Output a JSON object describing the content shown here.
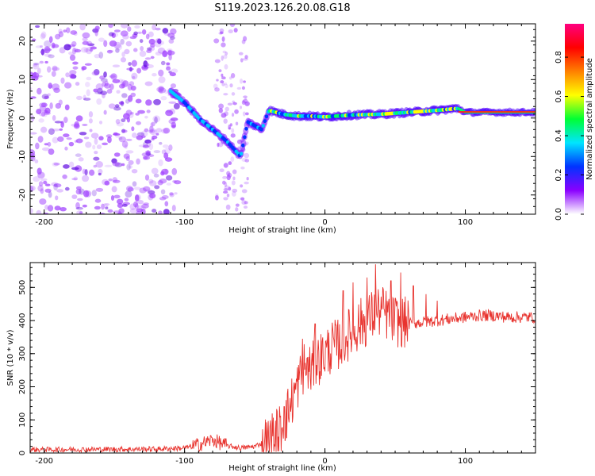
{
  "title": "S119.2023.126.20.08.G18",
  "chart_data": [
    {
      "type": "heatmap",
      "xlabel": "Height of straight line (km)",
      "ylabel": "Frequency (Hz)",
      "xlim": [
        -210,
        150
      ],
      "ylim": [
        -25,
        24.5
      ],
      "xticks": [
        -200,
        -100,
        0,
        100
      ],
      "yticks": [
        -20,
        -10,
        0,
        10,
        20
      ],
      "colorbar": {
        "label": "Normalized spectral amplitude",
        "range": [
          0,
          0.97
        ],
        "ticks": [
          0.0,
          0.2,
          0.4,
          0.6,
          0.8
        ],
        "tick_labels": [
          "0.0",
          "0.2",
          "0.4",
          "0.6",
          "0.8"
        ],
        "colors": [
          "#ffffff",
          "#8a00ff",
          "#0033ff",
          "#00e5ff",
          "#00ff33",
          "#ffff00",
          "#ff8000",
          "#ff0000",
          "#ff0080"
        ]
      },
      "signal_trace": {
        "x": [
          -110,
          -100,
          -90,
          -80,
          -70,
          -60,
          -55,
          -45,
          -40,
          -30,
          -20,
          -10,
          0,
          20,
          40,
          60,
          80,
          95,
          100,
          150
        ],
        "y": [
          7,
          4,
          0,
          -3,
          -6,
          -10,
          -1,
          -3,
          2,
          1,
          0.5,
          0.5,
          0.3,
          0.8,
          1.0,
          1.5,
          2.0,
          2.5,
          1.5,
          1.5
        ]
      },
      "noise_region_x": [
        -210,
        -105
      ],
      "secondary_trace_x": [
        -78,
        -55
      ]
    },
    {
      "type": "line",
      "xlabel": "Height of straight line (km)",
      "ylabel": "SNR (10 * v/v)",
      "xlim": [
        -210,
        150
      ],
      "ylim": [
        0,
        575
      ],
      "xticks": [
        -200,
        -100,
        0,
        100
      ],
      "yticks": [
        0,
        100,
        200,
        300,
        400,
        500
      ],
      "line_color": "#e8332e",
      "series": [
        {
          "x": [
            -210,
            -120,
            -100,
            -90,
            -80,
            -70,
            -60,
            -50,
            -40,
            -35,
            -30,
            -25,
            -20,
            -15,
            -10,
            -5,
            0,
            5,
            10,
            15,
            20,
            25,
            30,
            35,
            40,
            50,
            60,
            70,
            80,
            90,
            100,
            110,
            120,
            130,
            150
          ],
          "values": [
            10,
            12,
            15,
            25,
            40,
            22,
            15,
            20,
            40,
            55,
            85,
            140,
            200,
            260,
            250,
            280,
            300,
            320,
            330,
            350,
            370,
            390,
            400,
            420,
            430,
            400,
            390,
            395,
            400,
            405,
            410,
            415,
            415,
            410,
            410
          ]
        }
      ],
      "spikes": [
        {
          "x": -29,
          "values": [
            140
          ]
        },
        {
          "x": -16,
          "values": [
            345
          ]
        },
        {
          "x": -7,
          "values": [
            390
          ]
        },
        {
          "x": 13,
          "values": [
            490
          ]
        },
        {
          "x": 20,
          "values": [
            515
          ]
        },
        {
          "x": 30,
          "values": [
            530
          ]
        },
        {
          "x": 36,
          "values": [
            570
          ]
        },
        {
          "x": 47,
          "values": [
            520
          ]
        },
        {
          "x": 54,
          "values": [
            545
          ]
        },
        {
          "x": 63,
          "values": [
            505
          ]
        },
        {
          "x": 72,
          "values": [
            480
          ]
        },
        {
          "x": 80,
          "values": [
            460
          ]
        }
      ]
    }
  ]
}
